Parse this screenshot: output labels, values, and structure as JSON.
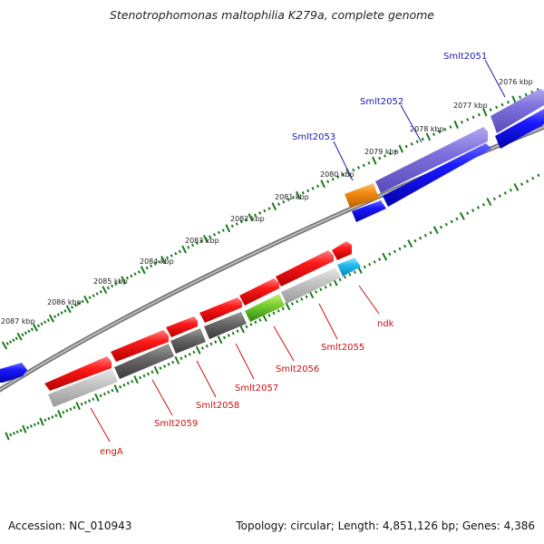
{
  "title": "Stenotrophomonas maltophilia K279a, complete genome",
  "footer": {
    "accession": "Accession: NC_010943",
    "stats": "Topology: circular; Length: 4,851,126 bp; Genes: 4,386"
  },
  "kbp_labels": [
    "2076 kbp",
    "2077 kbp",
    "2078 kbp",
    "2079 kbp",
    "2080 kbp",
    "2081 kbp",
    "2082 kbp",
    "2083 kbp",
    "2084 kbp",
    "2085 kbp",
    "2086 kbp",
    "2087 kbp"
  ],
  "gene_labels": [
    {
      "text": "Smlt2051",
      "color": "#1a1aaa"
    },
    {
      "text": "Smlt2052",
      "color": "#1a1aaa"
    },
    {
      "text": "Smlt2053",
      "color": "#1a1aaa"
    },
    {
      "text": "ndk",
      "color": "#cc1111"
    },
    {
      "text": "Smlt2055",
      "color": "#cc1111"
    },
    {
      "text": "Smlt2056",
      "color": "#cc1111"
    },
    {
      "text": "Smlt2057",
      "color": "#cc1111"
    },
    {
      "text": "Smlt2058",
      "color": "#cc1111"
    },
    {
      "text": "Smlt2059",
      "color": "#cc1111"
    },
    {
      "text": "engA",
      "color": "#cc1111"
    }
  ],
  "colors": {
    "forward_cds": "#1a1aee",
    "reverse_cds": "#ee1111",
    "tick": "#1a7a1a",
    "backbone": "#888888",
    "orange_feature": "#f08a10",
    "purple_feature": "#7a6ad8",
    "gray_feature": "#bbbbbb",
    "dark_gray_feature": "#666666",
    "green_feature": "#66cc22",
    "cyan_feature": "#22bbee"
  }
}
